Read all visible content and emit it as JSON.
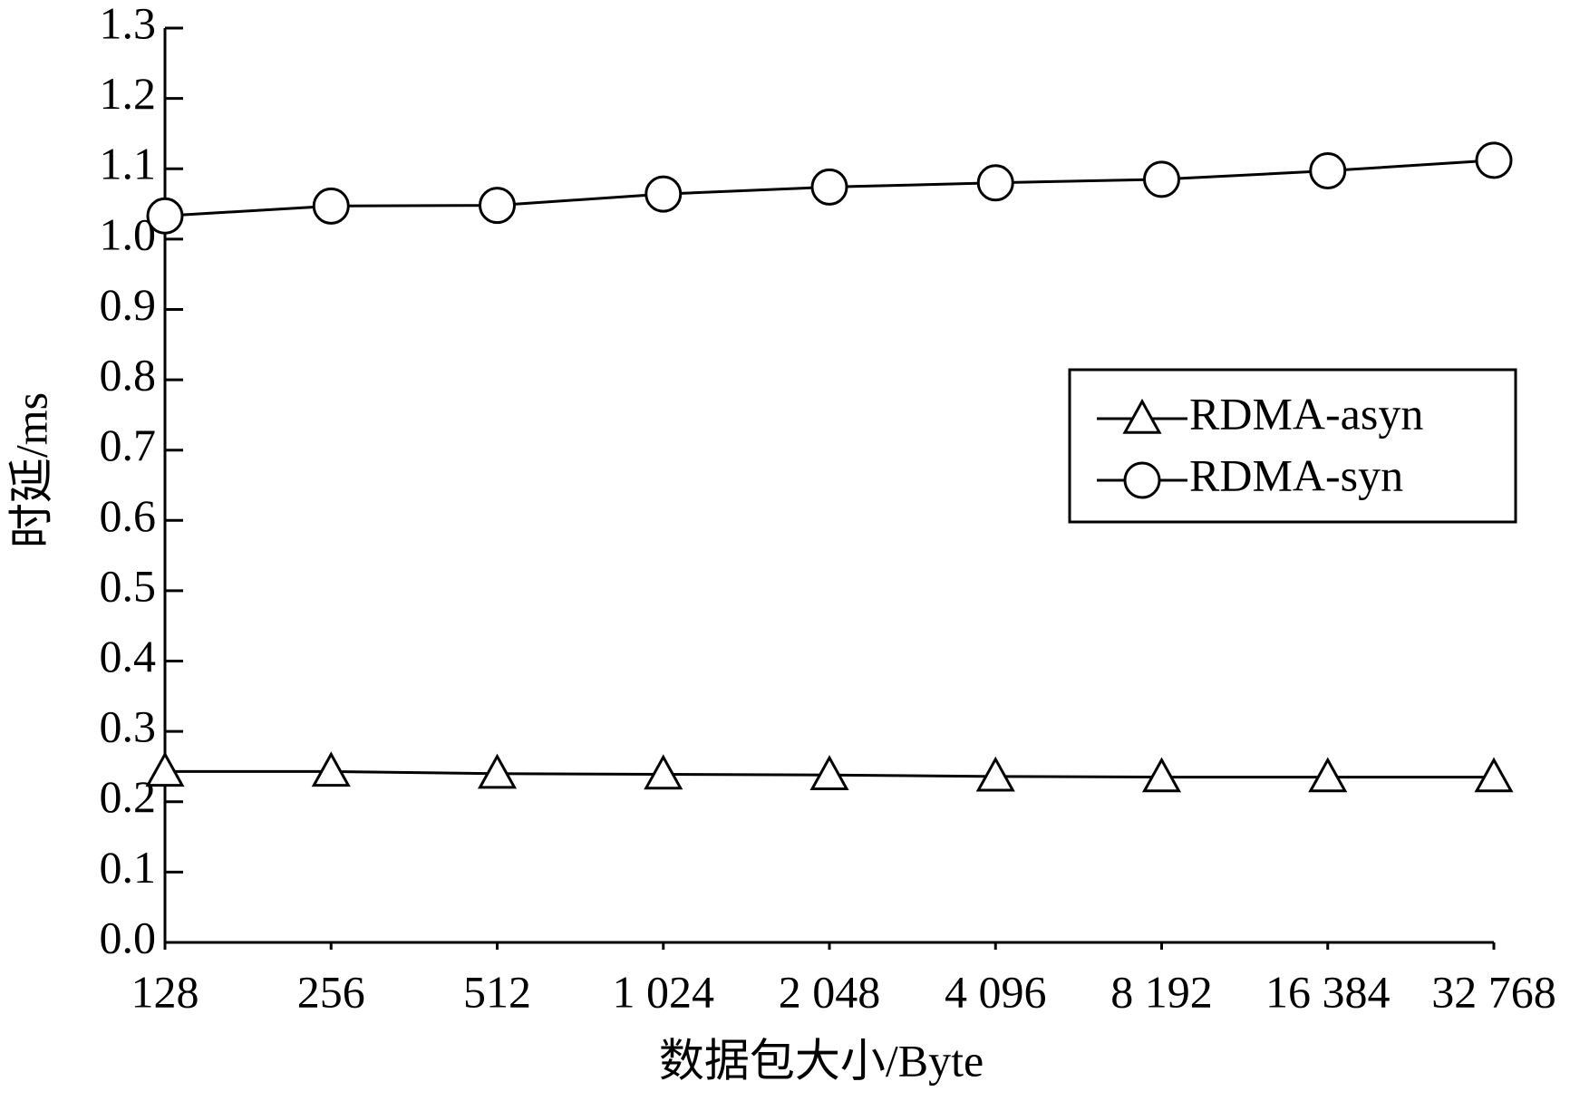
{
  "chart_data": {
    "type": "line",
    "xlabel": "数据包大小/Byte",
    "ylabel": "时延/ms",
    "categories": [
      "128",
      "256",
      "512",
      "1 024",
      "2 048",
      "4 096",
      "8 192",
      "16 384",
      "32 768"
    ],
    "series": [
      {
        "name": "RDMA-asyn",
        "color": "#000000",
        "marker": "triangle",
        "values": [
          0.243,
          0.243,
          0.24,
          0.239,
          0.238,
          0.236,
          0.235,
          0.235,
          0.235
        ]
      },
      {
        "name": "RDMA-syn",
        "color": "#000000",
        "marker": "circle",
        "values": [
          1.033,
          1.047,
          1.048,
          1.064,
          1.074,
          1.08,
          1.085,
          1.097,
          1.112
        ]
      }
    ],
    "ylim": [
      0,
      1.3
    ],
    "yticks": [
      {
        "value": 0,
        "label": "0.0"
      },
      0.1,
      0.2,
      0.3,
      0.4,
      0.5,
      0.6,
      0.7,
      0.8,
      0.9,
      {
        "value": 1,
        "label": "1.0"
      },
      1.1,
      1.2,
      1.3
    ],
    "legend": "right"
  }
}
